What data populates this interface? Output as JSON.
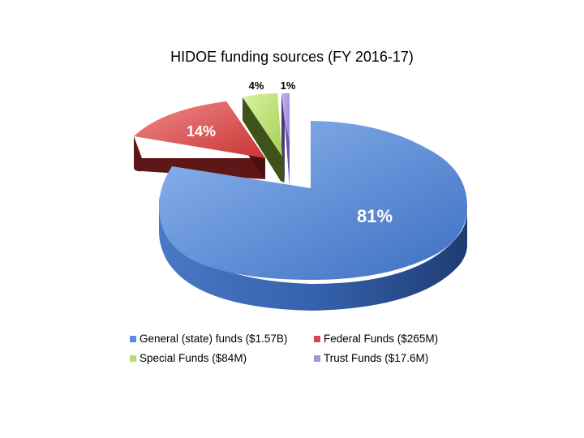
{
  "chart_data": {
    "type": "pie",
    "title": "HIDOE funding sources (FY 2016-17)",
    "slices": [
      {
        "label": "General (state) funds ($1.57B)",
        "percent_label": "81%",
        "value": 81,
        "color": "#5b8fd9"
      },
      {
        "label": "Federal Funds ($265M)",
        "percent_label": "14%",
        "value": 14,
        "color": "#d84848"
      },
      {
        "label": "Special Funds ($84M)",
        "percent_label": "4%",
        "value": 4,
        "color": "#b6e06a"
      },
      {
        "label": "Trust Funds ($17.6M)",
        "percent_label": "1%",
        "value": 1,
        "color": "#a88ee0"
      }
    ],
    "legend_position": "bottom"
  }
}
